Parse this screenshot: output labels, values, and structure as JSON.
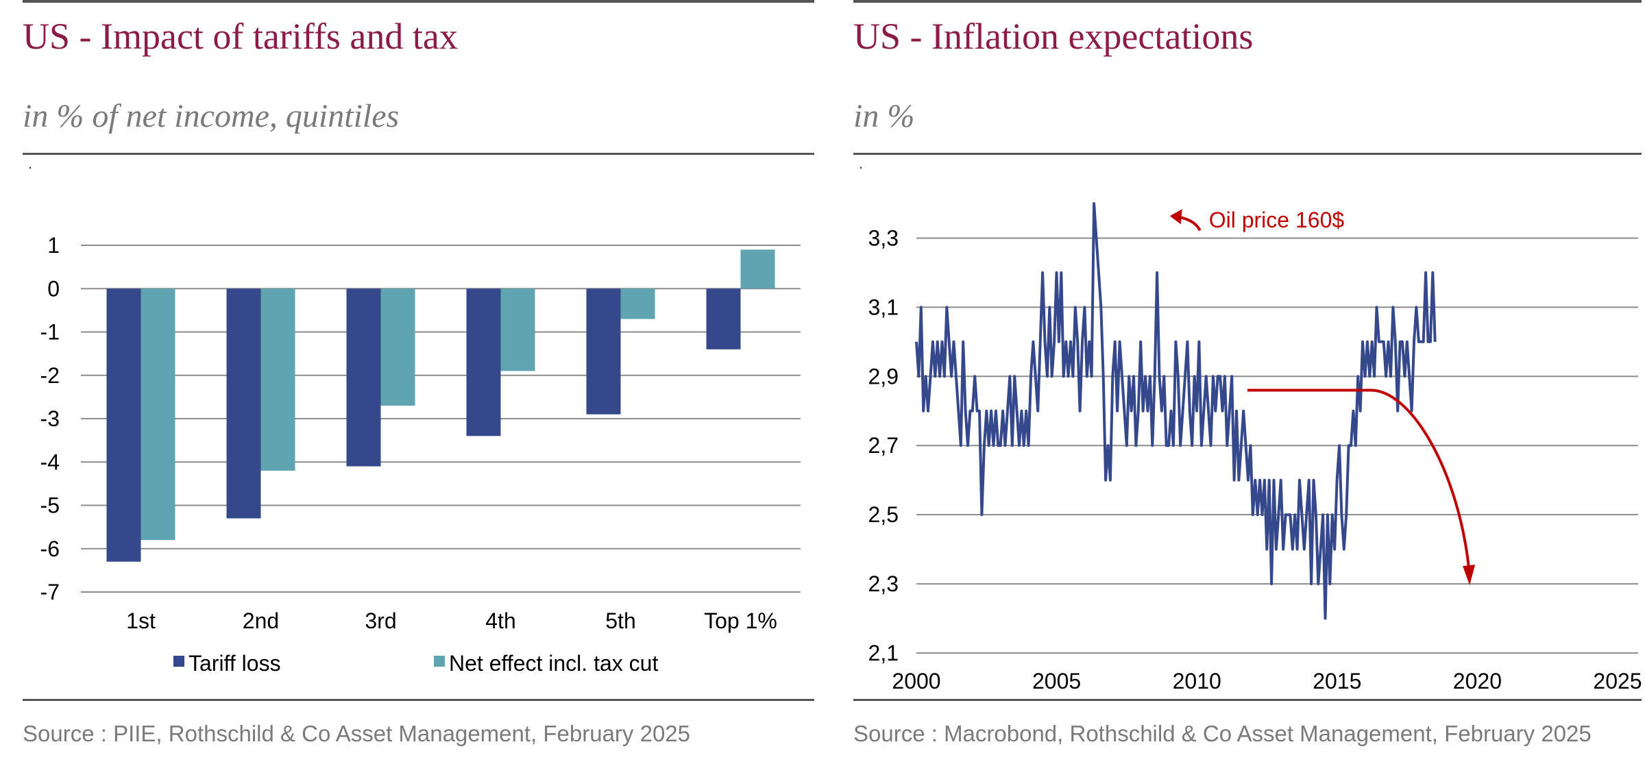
{
  "left": {
    "title": "US - Impact of tariffs and tax",
    "subtitle": "in % of net income, quintiles",
    "dot": ".",
    "source": "Source : PIIE, Rothschild & Co Asset Management, February 2025"
  },
  "right": {
    "title": "US - Inflation expectations",
    "subtitle": "in %",
    "dot": ".",
    "source": "Source : Macrobond, Rothschild & Co Asset Management, February 2025"
  },
  "chart_data": [
    {
      "type": "bar",
      "title": "US - Impact of tariffs and tax",
      "subtitle": "in % of net income, quintiles",
      "categories": [
        "1st",
        "2nd",
        "3rd",
        "4th",
        "5th",
        "Top 1%"
      ],
      "series": [
        {
          "name": "Tariff loss",
          "color": "#36488c",
          "values": [
            -6.3,
            -5.3,
            -4.1,
            -3.4,
            -2.9,
            -1.4
          ]
        },
        {
          "name": "Net effect incl. tax cut",
          "color": "#5fa4b0",
          "values": [
            -5.8,
            -4.2,
            -2.7,
            -1.9,
            -0.7,
            0.9
          ]
        }
      ],
      "ylim": [
        -7,
        1
      ],
      "yticks": [
        "1",
        "0",
        "-1",
        "-2",
        "-3",
        "-4",
        "-5",
        "-6",
        "-7"
      ],
      "grid": true,
      "legend": "bottom"
    },
    {
      "type": "line",
      "title": "US - Inflation expectations",
      "subtitle": "in %",
      "series": [
        {
          "name": "",
          "color": "#36488c",
          "start": 2000.0,
          "step": 0.0833,
          "values": [
            3.0,
            2.9,
            3.1,
            2.8,
            2.9,
            2.8,
            2.9,
            3.0,
            2.9,
            3.0,
            2.9,
            3.0,
            2.9,
            3.1,
            3.0,
            2.9,
            3.0,
            2.9,
            2.8,
            2.7,
            3.0,
            2.8,
            2.7,
            2.8,
            2.8,
            2.9,
            2.8,
            2.8,
            2.5,
            2.7,
            2.8,
            2.7,
            2.8,
            2.7,
            2.8,
            2.7,
            2.7,
            2.8,
            2.7,
            2.8,
            2.9,
            2.7,
            2.9,
            2.8,
            2.7,
            2.8,
            2.7,
            2.8,
            2.7,
            2.9,
            3.0,
            2.9,
            2.8,
            3.0,
            3.2,
            3.0,
            2.9,
            3.1,
            2.9,
            3.0,
            3.2,
            3.0,
            3.2,
            2.9,
            3.0,
            2.9,
            3.0,
            2.9,
            3.1,
            3.0,
            2.8,
            3.0,
            3.1,
            2.9,
            3.0,
            2.9,
            3.4,
            3.3,
            3.2,
            3.1,
            2.9,
            2.6,
            2.7,
            2.6,
            2.9,
            3.0,
            2.8,
            3.0,
            2.9,
            2.8,
            2.7,
            2.9,
            2.8,
            2.9,
            2.7,
            2.8,
            3.0,
            2.8,
            2.9,
            2.8,
            2.9,
            2.7,
            2.9,
            3.2,
            2.9,
            2.8,
            2.9,
            2.7,
            2.7,
            2.8,
            2.7,
            3.0,
            2.9,
            2.7,
            2.8,
            2.9,
            3.0,
            2.8,
            2.7,
            2.9,
            2.8,
            3.0,
            2.7,
            2.8,
            2.9,
            2.8,
            2.7,
            2.9,
            2.8,
            2.9,
            2.9,
            2.8,
            2.9,
            2.7,
            2.8,
            2.9,
            2.6,
            2.8,
            2.6,
            2.7,
            2.8,
            2.7,
            2.6,
            2.7,
            2.5,
            2.6,
            2.5,
            2.6,
            2.5,
            2.6,
            2.4,
            2.6,
            2.3,
            2.6,
            2.4,
            2.5,
            2.6,
            2.4,
            2.5,
            2.5,
            2.5,
            2.4,
            2.5,
            2.4,
            2.6,
            2.5,
            2.4,
            2.5,
            2.6,
            2.3,
            2.6,
            2.5,
            2.3,
            2.4,
            2.5,
            2.2,
            2.5,
            2.3,
            2.5,
            2.4,
            2.6,
            2.7,
            2.5,
            2.4,
            2.5,
            2.7,
            2.7,
            2.8,
            2.7,
            2.9,
            2.8,
            3.0,
            2.9,
            3.0,
            2.9,
            3.0,
            2.9,
            3.1,
            3.0,
            3.0,
            3.0,
            2.9,
            3.0,
            2.9,
            3.1,
            3.0,
            2.8,
            3.0,
            3.0,
            2.9,
            3.0,
            2.9,
            2.8,
            3.0,
            3.1,
            3.0,
            3.0,
            3.0,
            3.2,
            3.0,
            3.0,
            3.2,
            3.0
          ]
        }
      ],
      "xticks": [
        "2000",
        "2005",
        "2010",
        "2015",
        "2020",
        "2025"
      ],
      "yticks": [
        "3,3",
        "3,1",
        "2,9",
        "2,7",
        "2,5",
        "2,3",
        "2,1"
      ],
      "ylim": [
        2.1,
        3.4
      ],
      "xlim": [
        2000,
        2025
      ],
      "grid": true,
      "annotations": [
        {
          "text": "Oil price 160$",
          "color": "#c00000",
          "x": 2008.4,
          "y": 3.35
        },
        {
          "text": "",
          "color": "#c00000",
          "from": [
            2011.8,
            2.86
          ],
          "to": [
            2019.7,
            2.3
          ]
        }
      ]
    }
  ]
}
